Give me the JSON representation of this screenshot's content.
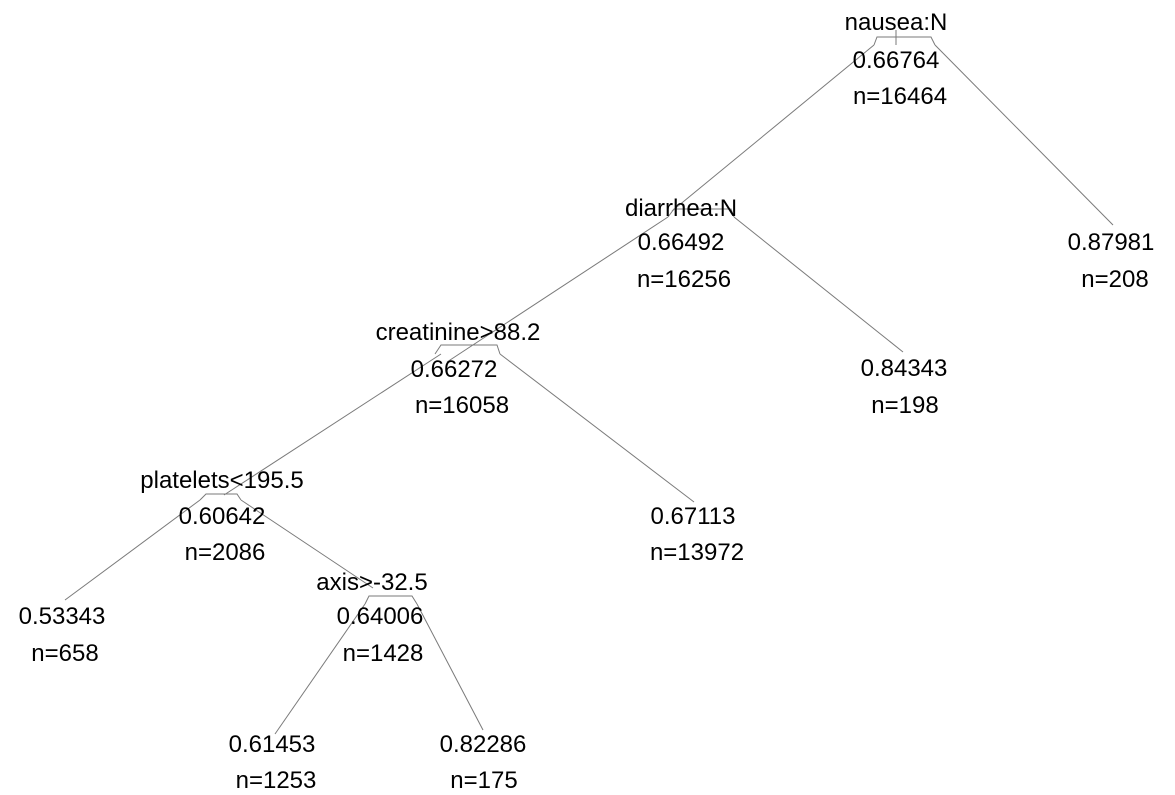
{
  "tree": {
    "nodes": {
      "root": {
        "split": "nausea:N",
        "value": "0.66764",
        "n": "n=16464"
      },
      "n_diarrhea": {
        "split": "diarrhea:N",
        "value": "0.66492",
        "n": "n=16256"
      },
      "n_creat": {
        "split": "creatinine>88.2",
        "value": "0.66272",
        "n": "n=16058"
      },
      "n_platelets": {
        "split": "platelets<195.5",
        "value": "0.60642",
        "n": "n=2086"
      },
      "n_axis": {
        "split": "axis>-32.5",
        "value": "0.64006",
        "n": "n=1428"
      },
      "leaf_nausea": {
        "value": "0.87981",
        "n": "n=208"
      },
      "leaf_diarrhea": {
        "value": "0.84343",
        "n": "n=198"
      },
      "leaf_creat": {
        "value": "0.67113",
        "n": "n=13972"
      },
      "leaf_platelets": {
        "value": "0.53343",
        "n": "n=658"
      },
      "leaf_axis_left": {
        "value": "0.61453",
        "n": "n=1253"
      },
      "leaf_axis_right": {
        "value": "0.82286",
        "n": "n=175"
      }
    }
  }
}
